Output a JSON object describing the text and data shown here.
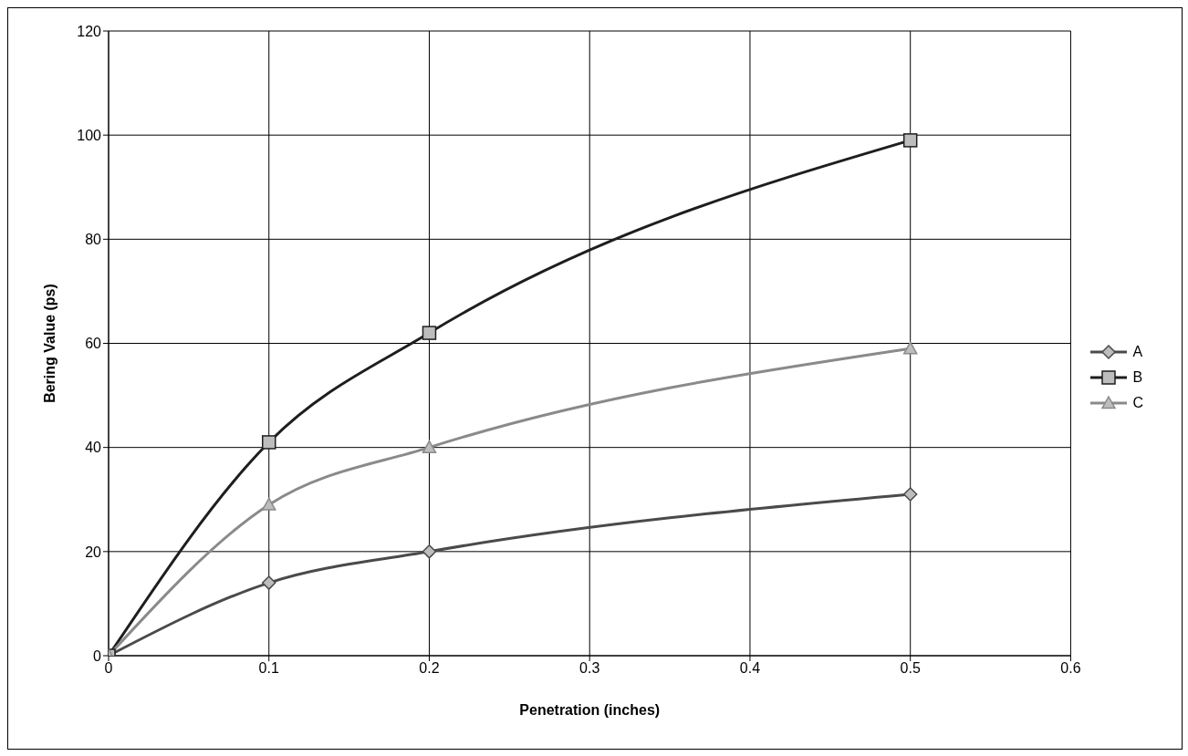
{
  "chart_data": {
    "type": "line",
    "xlabel": "Penetration (inches)",
    "ylabel": "Bering Value (ps)",
    "x": [
      0,
      0.1,
      0.2,
      0.5
    ],
    "series": [
      {
        "name": "A",
        "color": "#4a4a4a",
        "values": [
          0,
          14,
          20,
          31
        ],
        "marker": "diamond"
      },
      {
        "name": "B",
        "color": "#1e1e1e",
        "values": [
          0,
          41,
          62,
          99
        ],
        "marker": "square"
      },
      {
        "name": "C",
        "color": "#8a8a8a",
        "values": [
          0,
          29,
          40,
          59
        ],
        "marker": "triangle"
      }
    ],
    "xlim": [
      0,
      0.6
    ],
    "xticks": [
      0,
      0.1,
      0.2,
      0.3,
      0.4,
      0.5,
      0.6
    ],
    "ylim": [
      0,
      120
    ],
    "yticks": [
      0,
      20,
      40,
      60,
      80,
      100,
      120
    ],
    "grid": true,
    "legend": "right"
  }
}
